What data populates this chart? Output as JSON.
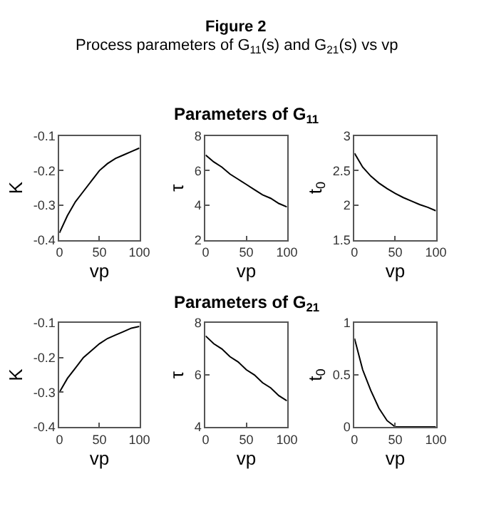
{
  "chart_data": [
    {
      "type": "line",
      "annotations": [
        "Figure 2",
        "Process parameters of G$_{11}$(s) and G$_{21}$(s) vs vp"
      ],
      "xlabel": "vp",
      "ylabel": "K",
      "x": [
        0,
        10,
        20,
        30,
        40,
        50,
        60,
        70,
        80,
        90,
        100
      ],
      "series": [
        {
          "color": "#000000",
          "values": [
            -0.38,
            -0.33,
            -0.29,
            -0.26,
            -0.23,
            -0.2,
            -0.18,
            -0.165,
            -0.155,
            -0.145,
            -0.135
          ]
        }
      ],
      "xlim": [
        0,
        100
      ],
      "xticks": [
        0,
        50,
        100
      ],
      "ylim": [
        -0.4,
        -0.1
      ],
      "yticks": [
        -0.4,
        -0.3,
        -0.2,
        -0.1
      ],
      "marker": "none",
      "line_style": "solid"
    },
    {
      "type": "line",
      "title": "Parameters of G$_{11}$",
      "xlabel": "vp",
      "ylabel": "τ",
      "x": [
        0,
        10,
        20,
        30,
        40,
        50,
        60,
        70,
        80,
        90,
        100
      ],
      "series": [
        {
          "color": "#000000",
          "values": [
            6.9,
            6.5,
            6.2,
            5.8,
            5.5,
            5.2,
            4.9,
            4.6,
            4.4,
            4.1,
            3.9
          ]
        }
      ],
      "xlim": [
        0,
        100
      ],
      "xticks": [
        0,
        50,
        100
      ],
      "ylim": [
        2,
        8
      ],
      "yticks": [
        2,
        4,
        6,
        8
      ],
      "marker": "none",
      "line_style": "solid"
    },
    {
      "type": "line",
      "xlabel": "vp",
      "ylabel": "t$_{0}$",
      "x": [
        0,
        10,
        20,
        30,
        40,
        50,
        60,
        70,
        80,
        90,
        100
      ],
      "series": [
        {
          "color": "#000000",
          "values": [
            2.75,
            2.55,
            2.42,
            2.32,
            2.24,
            2.17,
            2.11,
            2.06,
            2.01,
            1.97,
            1.92
          ]
        }
      ],
      "xlim": [
        0,
        100
      ],
      "xticks": [
        0,
        50,
        100
      ],
      "ylim": [
        1.5,
        3
      ],
      "yticks": [
        1.5,
        2,
        2.5,
        3
      ],
      "marker": "none",
      "line_style": "solid"
    },
    {
      "type": "line",
      "xlabel": "vp",
      "ylabel": "K",
      "x": [
        0,
        10,
        20,
        30,
        40,
        50,
        60,
        70,
        80,
        90,
        100
      ],
      "series": [
        {
          "color": "#000000",
          "values": [
            -0.3,
            -0.26,
            -0.23,
            -0.2,
            -0.18,
            -0.16,
            -0.145,
            -0.135,
            -0.125,
            -0.115,
            -0.11
          ]
        }
      ],
      "xlim": [
        0,
        100
      ],
      "xticks": [
        0,
        50,
        100
      ],
      "ylim": [
        -0.4,
        -0.1
      ],
      "yticks": [
        -0.4,
        -0.3,
        -0.2,
        -0.1
      ],
      "marker": "none",
      "line_style": "solid"
    },
    {
      "type": "line",
      "title": "Parameters of G$_{21}$",
      "xlabel": "vp",
      "ylabel": "τ",
      "x": [
        0,
        10,
        20,
        30,
        40,
        50,
        60,
        70,
        80,
        90,
        100
      ],
      "series": [
        {
          "color": "#000000",
          "values": [
            7.5,
            7.2,
            7.0,
            6.7,
            6.5,
            6.2,
            6.0,
            5.7,
            5.5,
            5.2,
            5.0
          ]
        }
      ],
      "xlim": [
        0,
        100
      ],
      "xticks": [
        0,
        50,
        100
      ],
      "ylim": [
        4,
        8
      ],
      "yticks": [
        4,
        6,
        8
      ],
      "marker": "none",
      "line_style": "solid"
    },
    {
      "type": "line",
      "xlabel": "vp",
      "ylabel": "t$_{0}$",
      "x": [
        0,
        10,
        20,
        30,
        40,
        50,
        60,
        70,
        80,
        90,
        100
      ],
      "series": [
        {
          "color": "#000000",
          "values": [
            0.85,
            0.55,
            0.35,
            0.18,
            0.06,
            0,
            0,
            0,
            0,
            0,
            0
          ]
        }
      ],
      "xlim": [
        0,
        100
      ],
      "xticks": [
        0,
        50,
        100
      ],
      "ylim": [
        0,
        1
      ],
      "yticks": [
        0,
        0.5,
        1
      ],
      "marker": "none",
      "line_style": "solid"
    }
  ]
}
